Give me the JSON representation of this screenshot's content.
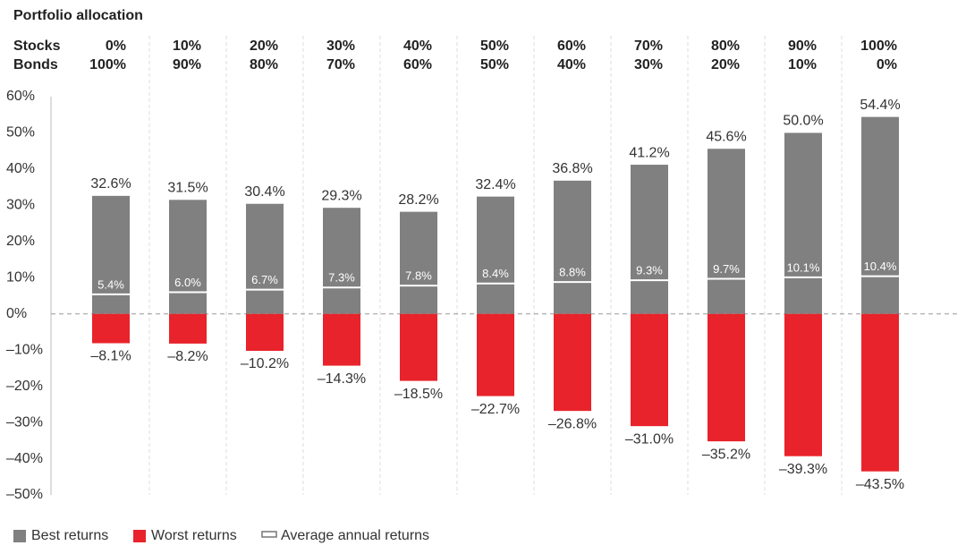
{
  "chart_data": {
    "type": "bar",
    "title": "Portfolio allocation",
    "allocation": {
      "labels": [
        "Stocks",
        "Bonds"
      ],
      "stocks": [
        "0%",
        "10%",
        "20%",
        "30%",
        "40%",
        "50%",
        "60%",
        "70%",
        "80%",
        "90%",
        "100%"
      ],
      "bonds": [
        "100%",
        "90%",
        "80%",
        "70%",
        "60%",
        "50%",
        "40%",
        "30%",
        "20%",
        "10%",
        "0%"
      ]
    },
    "series": [
      {
        "name": "Best returns",
        "color": "#808080",
        "mark": "bar",
        "values": [
          32.6,
          31.5,
          30.4,
          29.3,
          28.2,
          32.4,
          36.8,
          41.2,
          45.6,
          50.0,
          54.4
        ],
        "value_labels": [
          "32.6%",
          "31.5%",
          "30.4%",
          "29.3%",
          "28.2%",
          "32.4%",
          "36.8%",
          "41.2%",
          "45.6%",
          "50.0%",
          "54.4%"
        ]
      },
      {
        "name": "Worst returns",
        "color": "#e8232b",
        "mark": "bar",
        "values": [
          -8.1,
          -8.2,
          -10.2,
          -14.3,
          -18.5,
          -22.7,
          -26.8,
          -31.0,
          -35.2,
          -39.3,
          -43.5
        ],
        "value_labels": [
          "–8.1%",
          "–8.2%",
          "–10.2%",
          "–14.3%",
          "–18.5%",
          "–22.7%",
          "–26.8%",
          "–31.0%",
          "–35.2%",
          "–39.3%",
          "–43.5%"
        ]
      },
      {
        "name": "Average annual returns",
        "color": "#ffffff",
        "mark": "line",
        "values": [
          5.4,
          6.0,
          6.7,
          7.3,
          7.8,
          8.4,
          8.8,
          9.3,
          9.7,
          10.1,
          10.4
        ],
        "value_labels": [
          "5.4%",
          "6.0%",
          "6.7%",
          "7.3%",
          "7.8%",
          "8.4%",
          "8.8%",
          "9.3%",
          "9.7%",
          "10.1%",
          "10.4%"
        ]
      }
    ],
    "ylim": [
      -50,
      60
    ],
    "yticks": [
      {
        "value": -50,
        "label": "–50%"
      },
      {
        "value": -40,
        "label": "–40%"
      },
      {
        "value": -30,
        "label": "–30%"
      },
      {
        "value": -20,
        "label": "–20%"
      },
      {
        "value": -10,
        "label": "–10%"
      },
      {
        "value": 0,
        "label": "0%"
      },
      {
        "value": 10,
        "label": "10%"
      },
      {
        "value": 20,
        "label": "20%"
      },
      {
        "value": 30,
        "label": "30%"
      },
      {
        "value": 40,
        "label": "40%"
      },
      {
        "value": 50,
        "label": "50%"
      },
      {
        "value": 60,
        "label": "60%"
      }
    ]
  }
}
